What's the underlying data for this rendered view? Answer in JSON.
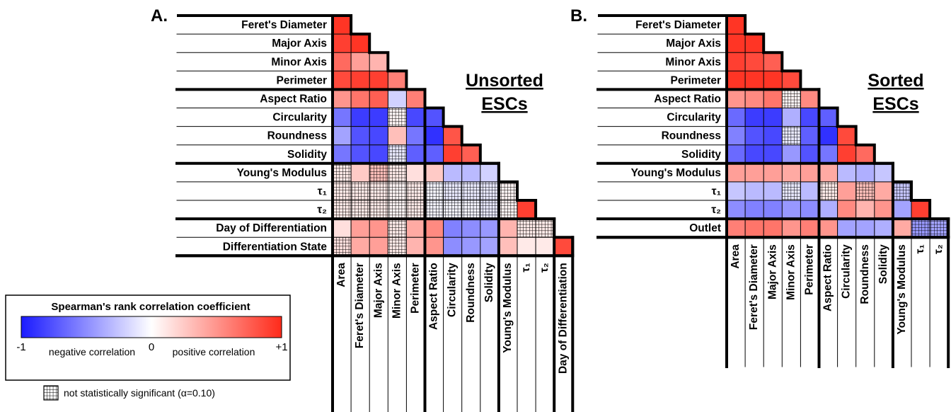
{
  "chart_data": [
    {
      "type": "heatmap",
      "panel_label": "A.",
      "title_lines": [
        "Unsorted",
        "ESCs"
      ],
      "rows": [
        "Feret's Diameter",
        "Major Axis",
        "Minor Axis",
        "Perimeter",
        "Aspect Ratio",
        "Circularity",
        "Roundness",
        "Solidity",
        "Young's Modulus",
        "τ₁",
        "τ₂",
        "Day of Differentiation",
        "Differentiation State"
      ],
      "columns": [
        "Area",
        "Feret's Diameter",
        "Major Axis",
        "Minor Axis",
        "Perimeter",
        "Aspect Ratio",
        "Circularity",
        "Roundness",
        "Solidity",
        "Young's Modulus",
        "τ₁",
        "τ₂",
        "Day of Differentiation"
      ],
      "values": [
        [
          0.95
        ],
        [
          0.9,
          0.95
        ],
        [
          0.7,
          0.45,
          0.35
        ],
        [
          0.85,
          0.9,
          0.9,
          0.6
        ],
        [
          0.5,
          0.65,
          0.75,
          -0.2,
          0.6
        ],
        [
          -0.6,
          -0.85,
          -0.85,
          0.05,
          -0.8,
          -0.75
        ],
        [
          -0.4,
          -0.75,
          -0.8,
          0.3,
          -0.6,
          -0.9,
          0.8
        ],
        [
          -0.6,
          -0.75,
          -0.8,
          -0.1,
          -0.7,
          -0.7,
          0.9,
          0.75
        ],
        [
          0.1,
          0.25,
          0.3,
          0.1,
          0.15,
          0.25,
          -0.3,
          -0.3,
          -0.2
        ],
        [
          0.1,
          0.1,
          0.1,
          0.05,
          0.1,
          -0.05,
          -0.1,
          -0.1,
          -0.1,
          0.05
        ],
        [
          0.1,
          0.1,
          0.1,
          0.05,
          0.1,
          -0.05,
          -0.05,
          -0.05,
          -0.1,
          0.05,
          0.9
        ],
        [
          0.15,
          0.45,
          0.5,
          0.1,
          0.4,
          0.55,
          -0.55,
          -0.5,
          -0.45,
          0.35,
          0.1,
          0.1
        ],
        [
          0.15,
          0.4,
          0.45,
          0.1,
          0.35,
          0.5,
          -0.5,
          -0.45,
          -0.4,
          0.3,
          0.1,
          0.1,
          0.85
        ]
      ],
      "not_significant": [
        [
          false
        ],
        [
          false,
          false
        ],
        [
          false,
          false,
          false
        ],
        [
          false,
          false,
          false,
          false
        ],
        [
          false,
          false,
          false,
          false,
          false
        ],
        [
          false,
          false,
          false,
          true,
          false,
          false
        ],
        [
          false,
          false,
          false,
          false,
          false,
          false,
          false
        ],
        [
          false,
          false,
          false,
          true,
          false,
          false,
          false,
          false
        ],
        [
          true,
          false,
          true,
          true,
          false,
          false,
          false,
          false,
          false
        ],
        [
          true,
          true,
          true,
          true,
          true,
          true,
          true,
          true,
          true,
          true
        ],
        [
          true,
          true,
          true,
          true,
          true,
          true,
          true,
          true,
          true,
          true,
          false
        ],
        [
          false,
          false,
          false,
          true,
          false,
          false,
          false,
          false,
          false,
          false,
          true,
          true
        ],
        [
          true,
          false,
          false,
          true,
          false,
          false,
          false,
          false,
          false,
          false,
          false,
          false,
          false
        ]
      ]
    },
    {
      "type": "heatmap",
      "panel_label": "B.",
      "title_lines": [
        "Sorted",
        "ESCs"
      ],
      "rows": [
        "Feret's Diameter",
        "Major Axis",
        "Minor Axis",
        "Perimeter",
        "Aspect Ratio",
        "Circularity",
        "Roundness",
        "Solidity",
        "Young's Modulus",
        "τ₁",
        "τ₂",
        "Outlet"
      ],
      "columns": [
        "Area",
        "Feret's Diameter",
        "Major Axis",
        "Minor Axis",
        "Perimeter",
        "Aspect Ratio",
        "Circularity",
        "Roundness",
        "Solidity",
        "Young's Modulus",
        "τ₁",
        "τ₂"
      ],
      "values": [
        [
          0.95
        ],
        [
          0.95,
          0.95
        ],
        [
          0.9,
          0.85,
          0.75
        ],
        [
          0.95,
          0.95,
          0.95,
          0.85
        ],
        [
          0.5,
          0.55,
          0.65,
          0.05,
          0.55
        ],
        [
          -0.65,
          -0.85,
          -0.85,
          -0.35,
          -0.8,
          -0.7
        ],
        [
          -0.55,
          -0.75,
          -0.8,
          -0.1,
          -0.7,
          -0.9,
          0.85
        ],
        [
          -0.65,
          -0.8,
          -0.8,
          -0.45,
          -0.75,
          -0.6,
          0.9,
          0.7
        ],
        [
          0.45,
          0.45,
          0.45,
          0.4,
          0.45,
          0.4,
          -0.3,
          -0.35,
          -0.25
        ],
        [
          -0.25,
          -0.3,
          -0.3,
          -0.1,
          -0.3,
          0.1,
          0.45,
          0.3,
          0.4,
          -0.25
        ],
        [
          -0.5,
          -0.55,
          -0.55,
          -0.45,
          -0.5,
          -0.35,
          0.55,
          0.35,
          0.5,
          -0.4,
          0.9
        ],
        [
          0.6,
          0.65,
          0.65,
          0.5,
          0.6,
          0.5,
          -0.4,
          -0.4,
          -0.35,
          0.4,
          -0.45,
          -0.4
        ]
      ],
      "not_significant": [
        [
          false
        ],
        [
          false,
          false
        ],
        [
          false,
          false,
          false
        ],
        [
          false,
          false,
          false,
          false
        ],
        [
          false,
          false,
          false,
          true,
          false
        ],
        [
          false,
          false,
          false,
          false,
          false,
          false
        ],
        [
          false,
          false,
          false,
          true,
          false,
          false,
          false
        ],
        [
          false,
          false,
          false,
          false,
          false,
          false,
          false,
          false
        ],
        [
          false,
          false,
          false,
          false,
          false,
          false,
          false,
          false,
          false
        ],
        [
          false,
          false,
          false,
          true,
          false,
          true,
          false,
          true,
          false,
          true
        ],
        [
          false,
          false,
          false,
          false,
          false,
          false,
          false,
          false,
          false,
          false,
          false
        ],
        [
          false,
          false,
          false,
          false,
          false,
          false,
          false,
          false,
          false,
          false,
          true,
          true
        ]
      ]
    }
  ],
  "legend": {
    "title": "Spearman's rank correlation coefficient",
    "colors": [
      "#1a1aff",
      "#ffffff",
      "#ff2a1a"
    ],
    "ticks": [
      -1,
      0,
      {
        "value": 1,
        "label": "+1"
      }
    ],
    "negative_label": "negative correlation",
    "positive_label": "positive correlation",
    "hatch_label": "not statistically significant (α=0.10)"
  }
}
